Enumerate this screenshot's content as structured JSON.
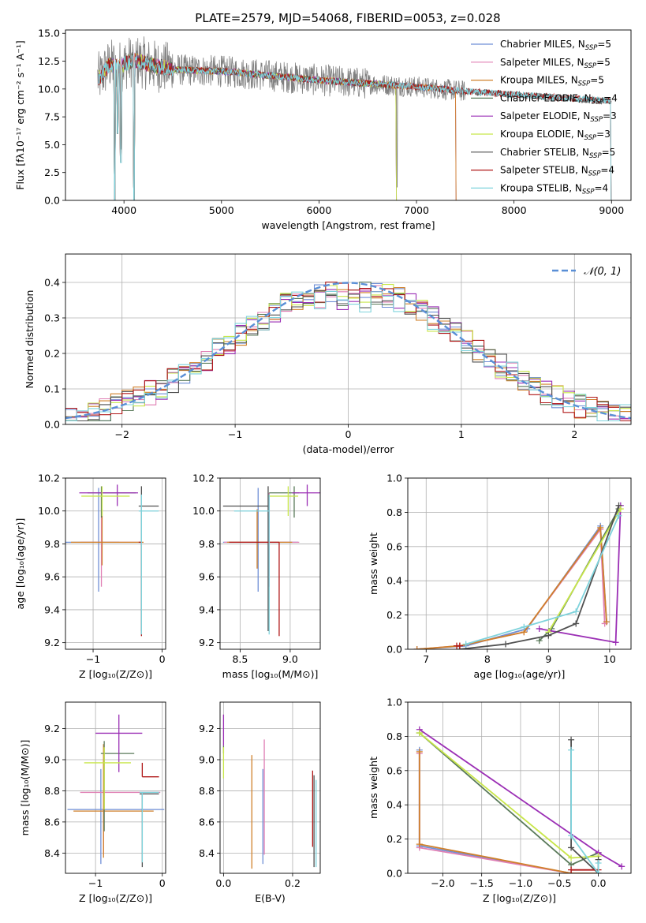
{
  "figure": {
    "title": "PLATE=2579, MJD=54068, FIBERID=0053, z=0.028"
  },
  "colors": {
    "Chabrier MILES": "#6f8fd6",
    "Salpeter MILES": "#e07fb4",
    "Kroupa MILES": "#d0802a",
    "Chabrier ELODIE": "#5a7a5a",
    "Salpeter ELODIE": "#9b2fb5",
    "Kroupa ELODIE": "#c8e64a",
    "Chabrier STELIB": "#505050",
    "Salpeter STELIB": "#b01818",
    "Kroupa STELIB": "#7fd3dc",
    "data": "#808080",
    "gaussian": "#5a8fd6"
  },
  "chart_data": [
    {
      "id": "spectrum",
      "type": "line",
      "xlabel": "wavelength [Angstrom, rest frame]",
      "ylabel": "Flux [fλ10⁻¹⁷ erg cm⁻² s⁻¹ A⁻¹]",
      "xlim": [
        3400,
        9200
      ],
      "ylim": [
        0,
        15.3
      ],
      "xticks": [
        4000,
        5000,
        6000,
        7000,
        8000,
        9000
      ],
      "yticks": [
        0.0,
        2.5,
        5.0,
        7.5,
        10.0,
        12.5,
        15.0
      ],
      "legend_position": "top-right",
      "legend": [
        {
          "name": "Chabrier MILES",
          "nssp": "5"
        },
        {
          "name": "Salpeter MILES",
          "nssp": "5"
        },
        {
          "name": "Kroupa MILES",
          "nssp": "5"
        },
        {
          "name": "Chabrier ELODIE",
          "nssp": "4"
        },
        {
          "name": "Salpeter ELODIE",
          "nssp": "3"
        },
        {
          "name": "Kroupa ELODIE",
          "nssp": "3"
        },
        {
          "name": "Chabrier STELIB",
          "nssp": "5"
        },
        {
          "name": "Salpeter STELIB",
          "nssp": "4"
        },
        {
          "name": "Kroupa STELIB",
          "nssp": "4"
        }
      ],
      "continuum": {
        "x": [
          3750,
          3850,
          3950,
          4100,
          4300,
          4600,
          5000,
          5500,
          6000,
          6500,
          7000,
          7500,
          8000,
          8500,
          9000
        ],
        "y": [
          11.0,
          12.2,
          12.0,
          12.6,
          12.1,
          11.7,
          11.6,
          11.2,
          10.8,
          10.5,
          10.2,
          9.8,
          9.5,
          9.2,
          8.9
        ]
      },
      "model_end": {
        "MILES": 7410,
        "ELODIE": 6800,
        "STELIB": 9000
      },
      "dips": [
        {
          "x": 3905,
          "y": 0.0
        },
        {
          "x": 4102,
          "y": 0.0
        },
        {
          "x": 3968,
          "y": 3.4
        },
        {
          "x": 3934,
          "y": 6.0
        },
        {
          "x": 6800,
          "y": 0.0
        },
        {
          "x": 7410,
          "y": 0.0
        }
      ]
    },
    {
      "id": "residuals",
      "type": "histogram",
      "xlabel": "(data-model)/error",
      "ylabel": "Normed distribution",
      "xlim": [
        -2.5,
        2.5
      ],
      "ylim": [
        0,
        0.48
      ],
      "xticks": [
        -2,
        -1,
        0,
        1,
        2
      ],
      "yticks": [
        0.0,
        0.1,
        0.2,
        0.3,
        0.4
      ],
      "gaussian_label": "𝒩(0, 1)",
      "legend_position": "top-right",
      "bin_width": 0.1
    },
    {
      "id": "age-vs-Z",
      "type": "errorbar",
      "xlabel": "Z [log₁₀(Z/Z⊙)]",
      "ylabel": "age  [log₁₀(age/yr)]",
      "xlim": [
        -1.4,
        0.05
      ],
      "ylim": [
        9.16,
        10.2
      ],
      "xticks": [
        -1,
        0
      ],
      "yticks": [
        9.2,
        9.4,
        9.6,
        9.8,
        10.0,
        10.2
      ],
      "points": [
        {
          "m": "Chabrier MILES",
          "x": -0.92,
          "y": 9.81,
          "xe": [
            0.5,
            0.3
          ],
          "ye": [
            0.3,
            0.33
          ]
        },
        {
          "m": "Salpeter MILES",
          "x": -0.88,
          "y": 9.81,
          "xe": [
            0.3,
            0.55
          ],
          "ye": [
            0.27,
            0.3
          ]
        },
        {
          "m": "Kroupa MILES",
          "x": -0.87,
          "y": 9.81,
          "xe": [
            0.45,
            0.6
          ],
          "ye": [
            0.14,
            0.2
          ]
        },
        {
          "m": "Chabrier ELODIE",
          "x": -0.88,
          "y": 10.11,
          "xe": [
            0.2,
            0.5
          ],
          "ye": [
            0.15,
            0.04
          ]
        },
        {
          "m": "Salpeter ELODIE",
          "x": -0.65,
          "y": 10.11,
          "xe": [
            0.55,
            0.3
          ],
          "ye": [
            0.08,
            0.05
          ]
        },
        {
          "m": "Kroupa ELODIE",
          "x": -0.87,
          "y": 10.09,
          "xe": [
            0.3,
            0.4
          ],
          "ye": [
            0.12,
            0.06
          ]
        },
        {
          "m": "Chabrier STELIB",
          "x": -0.3,
          "y": 10.03,
          "xe": [
            0.04,
            0.25
          ],
          "ye": [
            0.76,
            0.12
          ]
        },
        {
          "m": "Salpeter STELIB",
          "x": -0.3,
          "y": 9.81,
          "xe": [
            0.04,
            0.0
          ],
          "ye": [
            0.57,
            0.0
          ]
        },
        {
          "m": "Kroupa STELIB",
          "x": -0.3,
          "y": 10.0,
          "xe": [
            0.04,
            0.25
          ],
          "ye": [
            0.75,
            0.1
          ]
        }
      ]
    },
    {
      "id": "age-vs-mass",
      "type": "errorbar",
      "xlabel": "mass [log₁₀(M/M⊙)]",
      "ylabel": "",
      "xlim": [
        8.3,
        9.3
      ],
      "ylim": [
        9.16,
        10.2
      ],
      "xticks": [
        8.5,
        9.0
      ],
      "yticks": [
        9.2,
        9.4,
        9.6,
        9.8,
        10.0,
        10.2
      ],
      "points": [
        {
          "m": "Chabrier MILES",
          "x": 8.68,
          "y": 9.81,
          "xe": [
            0.35,
            0.4
          ],
          "ye": [
            0.3,
            0.33
          ]
        },
        {
          "m": "Salpeter MILES",
          "x": 8.79,
          "y": 9.81,
          "xe": [
            0.45,
            0.3
          ],
          "ye": [
            0.27,
            0.3
          ]
        },
        {
          "m": "Kroupa MILES",
          "x": 8.67,
          "y": 9.81,
          "xe": [
            0.3,
            0.35
          ],
          "ye": [
            0.16,
            0.2
          ]
        },
        {
          "m": "Chabrier ELODIE",
          "x": 9.04,
          "y": 10.11,
          "xe": [
            0.25,
            0.05
          ],
          "ye": [
            0.15,
            0.04
          ]
        },
        {
          "m": "Salpeter ELODIE",
          "x": 9.17,
          "y": 10.11,
          "xe": [
            0.15,
            0.3
          ],
          "ye": [
            0.08,
            0.05
          ]
        },
        {
          "m": "Kroupa ELODIE",
          "x": 8.98,
          "y": 10.09,
          "xe": [
            0.2,
            0.1
          ],
          "ye": [
            0.12,
            0.06
          ]
        },
        {
          "m": "Chabrier STELIB",
          "x": 8.78,
          "y": 10.03,
          "xe": [
            0.45,
            0.0
          ],
          "ye": [
            0.76,
            0.12
          ]
        },
        {
          "m": "Salpeter STELIB",
          "x": 8.89,
          "y": 9.81,
          "xe": [
            0.5,
            0.0
          ],
          "ye": [
            0.57,
            0.0
          ]
        },
        {
          "m": "Kroupa STELIB",
          "x": 8.79,
          "y": 10.0,
          "xe": [
            0.35,
            0.0
          ],
          "ye": [
            0.75,
            0.1
          ]
        }
      ]
    },
    {
      "id": "massweight-vs-age",
      "type": "line",
      "xlabel": "age  [log₁₀(age/yr)]",
      "ylabel": "mass weight",
      "xlim": [
        6.7,
        10.35
      ],
      "ylim": [
        0,
        1.0
      ],
      "xticks": [
        7,
        8,
        9,
        10
      ],
      "yticks": [
        0.0,
        0.2,
        0.4,
        0.6,
        0.8,
        1.0
      ],
      "series": [
        {
          "m": "Chabrier MILES",
          "x": [
            6.85,
            7.65,
            8.65,
            9.85,
            9.95
          ],
          "y": [
            0.0,
            0.02,
            0.12,
            0.72,
            0.16
          ]
        },
        {
          "m": "Salpeter MILES",
          "x": [
            6.85,
            7.55,
            8.6,
            9.85,
            9.92
          ],
          "y": [
            0.0,
            0.02,
            0.1,
            0.7,
            0.15
          ]
        },
        {
          "m": "Kroupa MILES",
          "x": [
            6.85,
            7.55,
            8.6,
            9.85,
            9.95
          ],
          "y": [
            0.0,
            0.02,
            0.1,
            0.71,
            0.16
          ]
        },
        {
          "m": "Chabrier ELODIE",
          "x": [
            8.85,
            9.05,
            10.15
          ],
          "y": [
            0.05,
            0.12,
            0.82
          ]
        },
        {
          "m": "Salpeter ELODIE",
          "x": [
            8.85,
            10.1,
            10.18
          ],
          "y": [
            0.12,
            0.04,
            0.84
          ]
        },
        {
          "m": "Kroupa ELODIE",
          "x": [
            9.0,
            10.18
          ],
          "y": [
            0.1,
            0.82
          ]
        },
        {
          "m": "Chabrier STELIB",
          "x": [
            7.55,
            8.3,
            9.0,
            9.45,
            10.15
          ],
          "y": [
            0.0,
            0.03,
            0.08,
            0.15,
            0.84
          ]
        },
        {
          "m": "Salpeter STELIB",
          "x": [
            7.5,
            7.55
          ],
          "y": [
            0.02,
            0.02
          ]
        },
        {
          "m": "Kroupa STELIB",
          "x": [
            7.65,
            8.6,
            9.45,
            10.15
          ],
          "y": [
            0.03,
            0.13,
            0.22,
            0.78
          ]
        }
      ]
    },
    {
      "id": "mass-vs-Z",
      "type": "errorbar",
      "xlabel": "Z [log₁₀(Z/Z⊙)]",
      "ylabel": "mass [log₁₀(M/M⊙)]",
      "xlim": [
        -1.45,
        0.05
      ],
      "ylim": [
        8.27,
        9.37
      ],
      "xticks": [
        -1,
        0
      ],
      "yticks": [
        8.4,
        8.6,
        8.8,
        9.0,
        9.2
      ],
      "points": [
        {
          "m": "Chabrier MILES",
          "x": -0.92,
          "y": 8.68,
          "xe": [
            0.5,
            0.95
          ],
          "ye": [
            0.35,
            0.26
          ]
        },
        {
          "m": "Salpeter MILES",
          "x": -0.88,
          "y": 8.79,
          "xe": [
            0.35,
            0.85
          ],
          "ye": [
            0.4,
            0.2
          ]
        },
        {
          "m": "Kroupa MILES",
          "x": -0.88,
          "y": 8.67,
          "xe": [
            0.45,
            0.75
          ],
          "ye": [
            0.3,
            0.43
          ]
        },
        {
          "m": "Chabrier ELODIE",
          "x": -0.87,
          "y": 9.04,
          "xe": [
            0.05,
            0.45
          ],
          "ye": [
            0.5,
            0.08
          ]
        },
        {
          "m": "Salpeter ELODIE",
          "x": -0.65,
          "y": 9.17,
          "xe": [
            0.35,
            0.35
          ],
          "ye": [
            0.25,
            0.12
          ]
        },
        {
          "m": "Kroupa ELODIE",
          "x": -0.87,
          "y": 8.98,
          "xe": [
            0.3,
            0.4
          ],
          "ye": [
            0.3,
            0.1
          ]
        },
        {
          "m": "Chabrier STELIB",
          "x": -0.3,
          "y": 8.78,
          "xe": [
            0.04,
            0.25
          ],
          "ye": [
            0.47,
            0.0
          ]
        },
        {
          "m": "Salpeter STELIB",
          "x": -0.3,
          "y": 8.89,
          "xe": [
            0.0,
            0.25
          ],
          "ye": [
            0.0,
            0.09
          ]
        },
        {
          "m": "Kroupa STELIB",
          "x": -0.3,
          "y": 8.79,
          "xe": [
            0.04,
            0.25
          ],
          "ye": [
            0.45,
            0.0
          ]
        }
      ]
    },
    {
      "id": "mass-vs-ebv",
      "type": "errorbar",
      "xlabel": "E(B-V)",
      "ylabel": "",
      "xlim": [
        -0.01,
        0.28
      ],
      "ylim": [
        8.27,
        9.37
      ],
      "xticks": [
        0.0,
        0.2
      ],
      "yticks": [
        8.4,
        8.6,
        8.8,
        9.0,
        9.2
      ],
      "points": [
        {
          "m": "Chabrier MILES",
          "x": 0.114,
          "y": 8.68,
          "ye": [
            0.35,
            0.26
          ]
        },
        {
          "m": "Salpeter MILES",
          "x": 0.118,
          "y": 8.79,
          "ye": [
            0.4,
            0.34
          ]
        },
        {
          "m": "Kroupa MILES",
          "x": 0.082,
          "y": 8.67,
          "ye": [
            0.37,
            0.36
          ]
        },
        {
          "m": "Chabrier ELODIE",
          "x": 0.0,
          "y": 9.04,
          "ye": [
            0.0,
            0.05
          ]
        },
        {
          "m": "Salpeter ELODIE",
          "x": 0.0,
          "y": 9.17,
          "ye": [
            0.08,
            0.12
          ]
        },
        {
          "m": "Kroupa ELODIE",
          "x": 0.0,
          "y": 8.98,
          "ye": [
            0.1,
            0.1
          ]
        },
        {
          "m": "Chabrier STELIB",
          "x": 0.262,
          "y": 8.78,
          "ye": [
            0.47,
            0.12
          ]
        },
        {
          "m": "Salpeter STELIB",
          "x": 0.258,
          "y": 8.89,
          "ye": [
            0.45,
            0.04
          ]
        },
        {
          "m": "Kroupa STELIB",
          "x": 0.268,
          "y": 8.79,
          "ye": [
            0.48,
            0.08
          ]
        }
      ]
    },
    {
      "id": "massweight-vs-Z",
      "type": "line",
      "xlabel": "Z [log₁₀(Z/Z⊙)]",
      "ylabel": "mass weight",
      "xlim": [
        -2.45,
        0.42
      ],
      "ylim": [
        0,
        1.0
      ],
      "xticks": [
        -2.0,
        -1.5,
        -1.0,
        -0.5,
        0.0
      ],
      "yticks": [
        0.0,
        0.2,
        0.4,
        0.6,
        0.8,
        1.0
      ],
      "series": [
        {
          "m": "Chabrier MILES",
          "x": [
            -2.3,
            -2.3,
            -0.35,
            0.0,
            0.0
          ],
          "y": [
            0.72,
            0.16,
            0.0,
            0.0,
            0.0
          ]
        },
        {
          "m": "Salpeter MILES",
          "x": [
            -2.3,
            -2.3,
            -0.35,
            0.0
          ],
          "y": [
            0.7,
            0.15,
            0.0,
            0.0
          ]
        },
        {
          "m": "Kroupa MILES",
          "x": [
            -2.3,
            -2.3,
            -0.35,
            0.0
          ],
          "y": [
            0.71,
            0.17,
            0.0,
            0.0
          ]
        },
        {
          "m": "Chabrier ELODIE",
          "x": [
            -2.3,
            -0.35,
            0.0
          ],
          "y": [
            0.82,
            0.05,
            0.12
          ]
        },
        {
          "m": "Salpeter ELODIE",
          "x": [
            -2.3,
            0.0,
            0.3
          ],
          "y": [
            0.84,
            0.12,
            0.04
          ]
        },
        {
          "m": "Kroupa ELODIE",
          "x": [
            -2.3,
            -0.35,
            0.0
          ],
          "y": [
            0.82,
            0.09,
            0.1
          ]
        },
        {
          "m": "Chabrier STELIB",
          "x": [
            -0.35,
            -0.35,
            0.0,
            0.0
          ],
          "y": [
            0.78,
            0.15,
            0.0,
            0.08
          ]
        },
        {
          "m": "Salpeter STELIB",
          "x": [
            -0.35,
            0.0
          ],
          "y": [
            0.02,
            0.02
          ]
        },
        {
          "m": "Kroupa STELIB",
          "x": [
            -0.35,
            -0.35,
            0.0,
            0.0
          ],
          "y": [
            0.72,
            0.22,
            0.0,
            0.06
          ]
        }
      ]
    }
  ]
}
